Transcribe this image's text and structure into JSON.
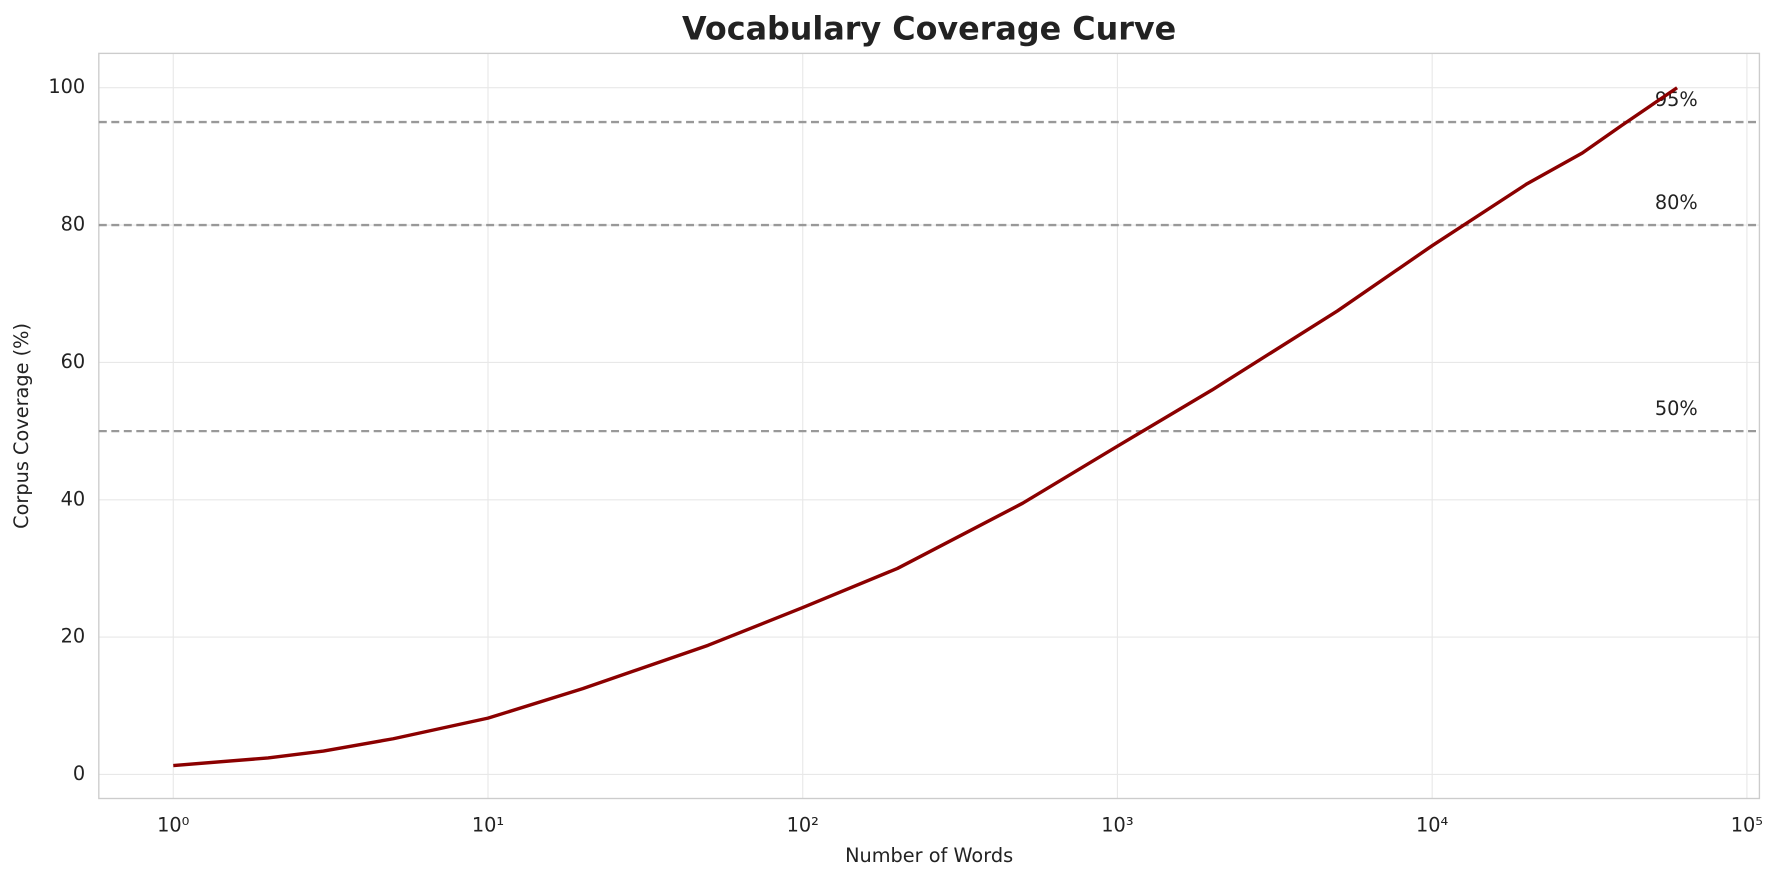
{
  "chart_data": {
    "type": "line",
    "title": "Vocabulary Coverage Curve",
    "xlabel": "Number of Words",
    "ylabel": "Corpus Coverage (%)",
    "xscale": "log",
    "x": [
      1,
      2,
      3,
      5,
      10,
      20,
      50,
      100,
      200,
      500,
      1000,
      2000,
      5000,
      10000,
      20000,
      30000,
      40000,
      60000
    ],
    "series": [
      {
        "name": "Coverage",
        "color": "#8b0000",
        "values": [
          1.3,
          2.4,
          3.4,
          5.2,
          8.2,
          12.5,
          18.8,
          24.3,
          30,
          39.5,
          47.8,
          56,
          67.5,
          77,
          86,
          90.5,
          94.5,
          100
        ]
      }
    ],
    "xlim": [
      0.58,
      109600
    ],
    "ylim": [
      -3.5,
      105
    ],
    "xticks": [
      {
        "value": 1,
        "label": "10⁰"
      },
      {
        "value": 10,
        "label": "10¹"
      },
      {
        "value": 100,
        "label": "10²"
      },
      {
        "value": 1000,
        "label": "10³"
      },
      {
        "value": 10000,
        "label": "10⁴"
      },
      {
        "value": 100000,
        "label": "10⁵"
      }
    ],
    "yticks": [
      0,
      20,
      40,
      60,
      80,
      100
    ],
    "grid": true,
    "reference_lines": [
      {
        "value": 50,
        "label": "50%"
      },
      {
        "value": 80,
        "label": "80%"
      },
      {
        "value": 95,
        "label": "95%"
      }
    ],
    "reference_label_x": 51000,
    "reference_color": "#999999"
  }
}
